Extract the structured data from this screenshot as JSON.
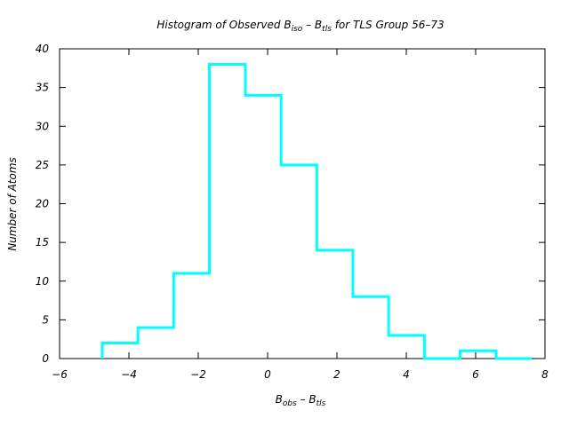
{
  "chart_data": {
    "type": "histogram",
    "title": {
      "prefix": "Histogram of Observed B",
      "sub1": "iso",
      "mid": " – B",
      "sub2": "tls",
      "suffix": " for TLS Group 56–73"
    },
    "xlabel": {
      "b1": "B",
      "s1": "obs",
      "mid": " – B",
      "s2": "tls"
    },
    "ylabel": "Number of Atoms",
    "xlim": [
      -6,
      8
    ],
    "ylim": [
      0,
      40
    ],
    "xticks": [
      -6,
      -4,
      -2,
      0,
      2,
      4,
      6,
      8
    ],
    "yticks": [
      0,
      5,
      10,
      15,
      20,
      25,
      30,
      35,
      40
    ],
    "bin_edges": [
      -4.77,
      -3.74,
      -2.71,
      -1.68,
      -0.64,
      0.39,
      1.42,
      2.46,
      3.49,
      4.52,
      5.55,
      6.59,
      7.62
    ],
    "counts": [
      2,
      4,
      11,
      38,
      34,
      25,
      14,
      8,
      3,
      0,
      1,
      0
    ],
    "line_color": "#00ffff",
    "grid": false
  }
}
